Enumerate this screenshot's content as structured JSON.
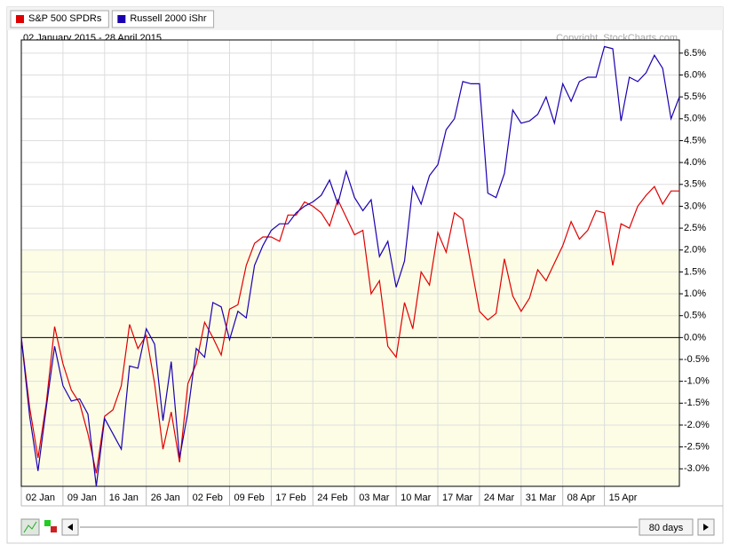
{
  "chart_data": {
    "type": "line",
    "subtitle": "02 January 2015 - 28 April 2015",
    "copyright": "Copyright, StockCharts.com",
    "range_label": "80 days",
    "xlim": [
      0,
      79
    ],
    "ylim": [
      -3.4,
      6.7
    ],
    "grid": true,
    "xticks": [
      {
        "value": 0,
        "label": "02 Jan"
      },
      {
        "value": 5,
        "label": "09 Jan"
      },
      {
        "value": 10,
        "label": "16 Jan"
      },
      {
        "value": 15,
        "label": "26 Jan"
      },
      {
        "value": 20,
        "label": "02 Feb"
      },
      {
        "value": 25,
        "label": "09 Feb"
      },
      {
        "value": 30,
        "label": "17 Feb"
      },
      {
        "value": 35,
        "label": "24 Feb"
      },
      {
        "value": 40,
        "label": "03 Mar"
      },
      {
        "value": 45,
        "label": "10 Mar"
      },
      {
        "value": 50,
        "label": "17 Mar"
      },
      {
        "value": 55,
        "label": "24 Mar"
      },
      {
        "value": 60,
        "label": "31 Mar"
      },
      {
        "value": 65,
        "label": "08 Apr"
      },
      {
        "value": 70,
        "label": "15 Apr"
      }
    ],
    "yticks": [
      {
        "value": -3.0,
        "label": "-3.0%"
      },
      {
        "value": -2.5,
        "label": "-2.5%"
      },
      {
        "value": -2.0,
        "label": "-2.0%"
      },
      {
        "value": -1.5,
        "label": "-1.5%"
      },
      {
        "value": -1.0,
        "label": "-1.0%"
      },
      {
        "value": -0.5,
        "label": "-0.5%"
      },
      {
        "value": 0.0,
        "label": "0.0%"
      },
      {
        "value": 0.5,
        "label": "0.5%"
      },
      {
        "value": 1.0,
        "label": "1.0%"
      },
      {
        "value": 1.5,
        "label": "1.5%"
      },
      {
        "value": 2.0,
        "label": "2.0%"
      },
      {
        "value": 2.5,
        "label": "2.5%"
      },
      {
        "value": 3.0,
        "label": "3.0%"
      },
      {
        "value": 3.5,
        "label": "3.5%"
      },
      {
        "value": 4.0,
        "label": "4.0%"
      },
      {
        "value": 4.5,
        "label": "4.5%"
      },
      {
        "value": 5.0,
        "label": "5.0%"
      },
      {
        "value": 5.5,
        "label": "5.5%"
      },
      {
        "value": 6.0,
        "label": "6.0%"
      },
      {
        "value": 6.5,
        "label": "6.5%"
      }
    ],
    "series": [
      {
        "name": "S&P 500 SPDRs",
        "color": "#e00000",
        "values": [
          0,
          -1.6,
          -2.75,
          -1.5,
          0.25,
          -0.6,
          -1.2,
          -1.5,
          -2.2,
          -3.1,
          -1.8,
          -1.65,
          -1.1,
          0.3,
          -0.25,
          0.05,
          -1.05,
          -2.55,
          -1.7,
          -2.85,
          -1.05,
          -0.6,
          0.35,
          0.0,
          -0.4,
          0.65,
          0.75,
          1.65,
          2.15,
          2.3,
          2.3,
          2.2,
          2.8,
          2.8,
          3.1,
          3.0,
          2.85,
          2.55,
          3.15,
          2.75,
          2.35,
          2.45,
          1.0,
          1.3,
          -0.2,
          -0.45,
          0.8,
          0.2,
          1.5,
          1.2,
          2.4,
          1.95,
          2.85,
          2.7,
          1.65,
          0.6,
          0.4,
          0.55,
          1.8,
          0.95,
          0.6,
          0.9,
          1.55,
          1.3,
          1.7,
          2.1,
          2.65,
          2.25,
          2.45,
          2.9,
          2.85,
          1.65,
          2.6,
          2.5,
          3.0,
          3.25,
          3.45,
          3.05,
          3.35,
          3.35
        ]
      },
      {
        "name": "Russell 2000 iShr",
        "color": "#1a00b0",
        "values": [
          0,
          -1.8,
          -3.05,
          -1.6,
          -0.2,
          -1.1,
          -1.45,
          -1.4,
          -1.75,
          -3.4,
          -1.85,
          -2.2,
          -2.55,
          -0.65,
          -0.7,
          0.2,
          -0.15,
          -1.9,
          -0.55,
          -2.75,
          -1.7,
          -0.25,
          -0.45,
          0.8,
          0.7,
          -0.05,
          0.6,
          0.45,
          1.65,
          2.1,
          2.45,
          2.6,
          2.6,
          2.85,
          3.0,
          3.1,
          3.25,
          3.6,
          3.05,
          3.8,
          3.2,
          2.9,
          3.15,
          1.85,
          2.2,
          1.15,
          1.75,
          3.45,
          3.05,
          3.7,
          3.95,
          4.75,
          5.0,
          5.85,
          5.8,
          5.8,
          3.3,
          3.2,
          3.75,
          5.2,
          4.9,
          4.95,
          5.1,
          5.5,
          4.9,
          5.8,
          5.4,
          5.85,
          5.95,
          5.95,
          6.65,
          6.6,
          4.95,
          5.95,
          5.85,
          6.05,
          6.45,
          6.15,
          5.0,
          5.5
        ]
      }
    ]
  }
}
